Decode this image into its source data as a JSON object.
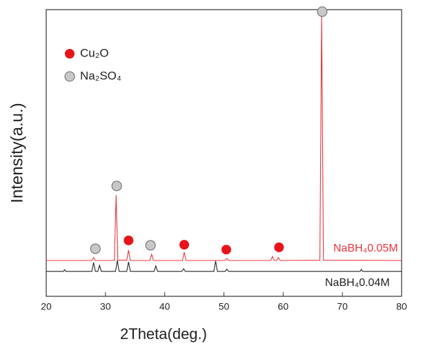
{
  "chart_data": {
    "type": "line",
    "xlabel": "2Theta(deg.)",
    "ylabel": "Intensity(a.u.)",
    "xlim": [
      20,
      80
    ],
    "xticks": [
      20,
      30,
      40,
      50,
      60,
      70,
      80
    ],
    "ylim": [
      0,
      100
    ],
    "series": [
      {
        "name": "NaBH₄0.05M",
        "color": "#e8343a",
        "x": [
          20,
          27.7,
          28.0,
          28.3,
          31.5,
          31.8,
          32.1,
          33.6,
          33.9,
          34.2,
          37.5,
          37.8,
          38.1,
          43.0,
          43.3,
          43.6,
          50.2,
          50.5,
          50.8,
          57.9,
          58.2,
          58.5,
          58.9,
          59.2,
          59.5,
          66.2,
          66.5,
          66.8,
          80
        ],
        "values": [
          12.5,
          12.5,
          13.5,
          12.5,
          12.5,
          35.3,
          12.6,
          12.6,
          16.1,
          12.5,
          12.5,
          14.7,
          12.5,
          12.5,
          15.4,
          12.5,
          12.5,
          13.2,
          12.5,
          12.5,
          13.9,
          12.5,
          12.5,
          13.5,
          12.5,
          12.6,
          98,
          12.6,
          12.5
        ]
      },
      {
        "name": "NaBH₄0.04M",
        "color": "#222222",
        "x": [
          20,
          22.9,
          23.1,
          23.3,
          27.7,
          28.0,
          28.3,
          28.7,
          29.0,
          29.3,
          31.7,
          32.0,
          32.3,
          33.6,
          33.9,
          34.2,
          38.2,
          38.5,
          38.8,
          42.9,
          43.2,
          43.5,
          48.3,
          48.6,
          48.9,
          50.2,
          50.5,
          50.8,
          73.0,
          73.2,
          73.4,
          80
        ],
        "values": [
          8.7,
          8.7,
          9.3,
          8.7,
          8.7,
          11.8,
          8.7,
          8.7,
          10.8,
          8.7,
          8.7,
          12.5,
          8.7,
          8.7,
          12.0,
          8.7,
          8.7,
          10.6,
          8.7,
          8.7,
          9.6,
          8.7,
          8.7,
          12.3,
          8.7,
          8.7,
          9.5,
          8.7,
          8.7,
          9.4,
          8.7,
          8.7
        ]
      }
    ],
    "phases": [
      {
        "name": "Cu₂O",
        "color": "#e8141b",
        "peaks": [
          {
            "x": 33.9,
            "y": 19.5
          },
          {
            "x": 43.3,
            "y": 18
          },
          {
            "x": 50.4,
            "y": 16.3
          },
          {
            "x": 59.3,
            "y": 17.1
          }
        ]
      },
      {
        "name": "Na₂SO₄",
        "color": "#c8c8c8",
        "peaks": [
          {
            "x": 28.3,
            "y": 16.6
          },
          {
            "x": 31.9,
            "y": 38.5
          },
          {
            "x": 37.6,
            "y": 17.8
          },
          {
            "x": 66.6,
            "y": 99.3
          }
        ]
      }
    ]
  }
}
